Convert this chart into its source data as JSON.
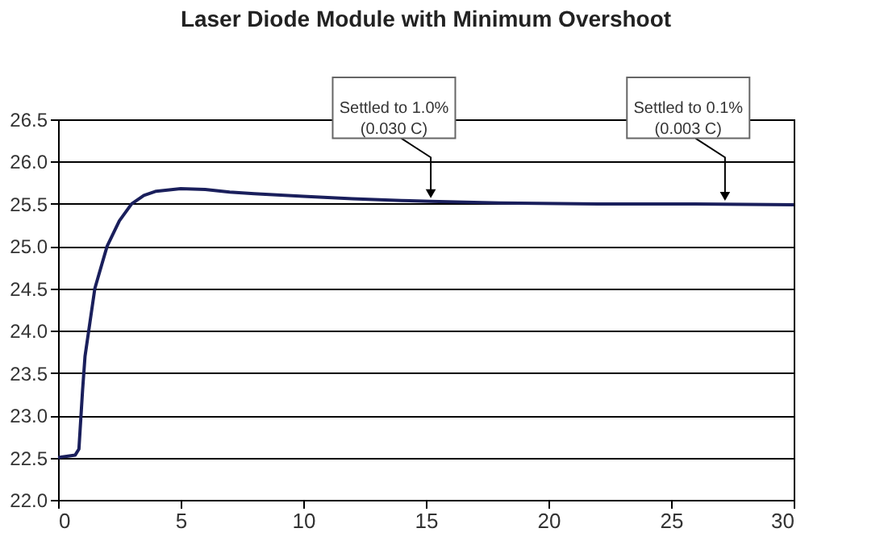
{
  "chart_data": {
    "type": "line",
    "title": "Laser Diode Module with Minimum Overshoot",
    "x": [
      0,
      0.7,
      0.85,
      1.0,
      1.1,
      1.3,
      1.5,
      1.8,
      2.0,
      2.5,
      3.0,
      3.5,
      4,
      5,
      6,
      7,
      8,
      10,
      12,
      14,
      15.2,
      18,
      22,
      26,
      30
    ],
    "series": [
      {
        "color": "#1a1f5c",
        "values": [
          22.5,
          22.53,
          22.6,
          23.3,
          23.7,
          24.1,
          24.5,
          24.8,
          25.0,
          25.3,
          25.5,
          25.6,
          25.65,
          25.68,
          25.67,
          25.64,
          25.62,
          25.59,
          25.56,
          25.54,
          25.53,
          25.51,
          25.5,
          25.5,
          25.49
        ]
      }
    ],
    "xlim": [
      0,
      30
    ],
    "xticks": [
      0,
      5,
      10,
      15,
      20,
      25,
      30
    ],
    "ylim": [
      22.0,
      26.5
    ],
    "yticks": [
      {
        "value": 22.0,
        "label": "22.0"
      },
      {
        "value": 22.5,
        "label": "22.5"
      },
      {
        "value": 23.0,
        "label": "23.0"
      },
      {
        "value": 23.5,
        "label": "23.5"
      },
      {
        "value": 24.0,
        "label": "24.0"
      },
      {
        "value": 24.5,
        "label": "24.5"
      },
      {
        "value": 25.0,
        "label": "25.0"
      },
      {
        "value": 25.5,
        "label": "25.5"
      },
      {
        "value": 26.0,
        "label": "26.0"
      },
      {
        "value": 26.5,
        "label": "26.5"
      }
    ],
    "grid": "y",
    "marker": "none",
    "line_style": "solid",
    "annotations": [
      {
        "text": "Settled to 1.0%\n(0.030 C)",
        "x": 15.2,
        "y": 25.53
      },
      {
        "text": "Settled to 0.1%\n(0.003 C)",
        "x": 27.2,
        "y": 25.5
      }
    ]
  }
}
